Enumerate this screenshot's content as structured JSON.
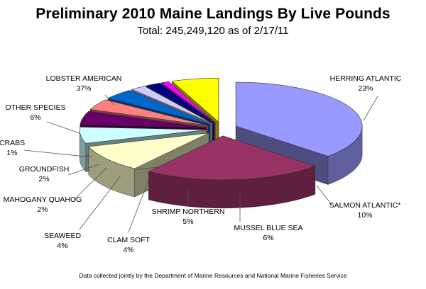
{
  "chart_data": {
    "type": "pie",
    "title": "Preliminary 2010 Maine Landings By Live Pounds",
    "subtitle": "Total: 245,249,120 as of 2/17/11",
    "footnote": "Data collected jointly by the Department of Marine Resources and National Marine Fisheries Service",
    "exploded": true,
    "three_d": true,
    "slices": [
      {
        "label": "LOBSTER AMERICAN",
        "pct_label": "37%",
        "value": 37,
        "color": "#9999ff"
      },
      {
        "label": "HERRING ATLANTIC",
        "pct_label": "23%",
        "value": 23,
        "color": "#993366"
      },
      {
        "label": "SALMON ATLANTIC*",
        "pct_label": "10%",
        "value": 10,
        "color": "#ffffcc"
      },
      {
        "label": "MUSSEL BLUE SEA",
        "pct_label": "6%",
        "value": 6,
        "color": "#ccffff"
      },
      {
        "label": "SHRIMP NORTHERN",
        "pct_label": "5%",
        "value": 5,
        "color": "#660066"
      },
      {
        "label": "CLAM SOFT",
        "pct_label": "4%",
        "value": 4,
        "color": "#ff8080"
      },
      {
        "label": "SEAWEED",
        "pct_label": "4%",
        "value": 4,
        "color": "#0066cc"
      },
      {
        "label": "MAHOGANY QUAHOG",
        "pct_label": "2%",
        "value": 2,
        "color": "#ccccff"
      },
      {
        "label": "GROUNDFISH",
        "pct_label": "2%",
        "value": 2,
        "color": "#000080"
      },
      {
        "label": "CRABS",
        "pct_label": "1%",
        "value": 1,
        "color": "#ff00ff"
      },
      {
        "label": "OTHER SPECIES",
        "pct_label": "6%",
        "value": 6,
        "color": "#ffff00"
      }
    ]
  }
}
